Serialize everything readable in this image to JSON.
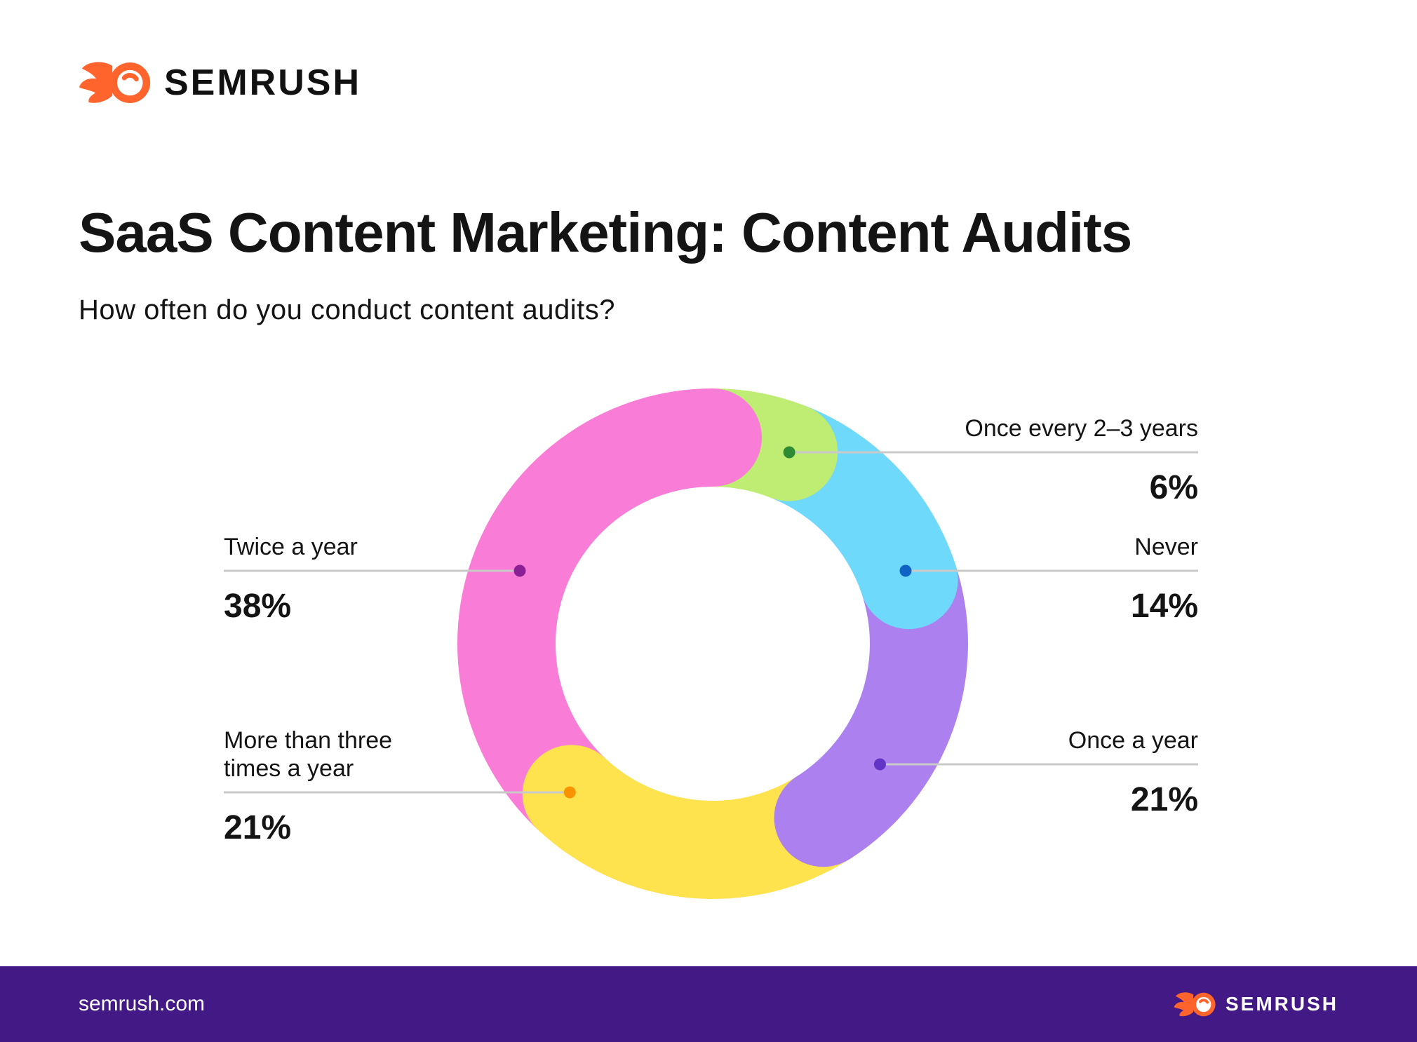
{
  "header": {
    "logo_text": "SEMRUSH",
    "title": "SaaS Content Marketing: Content Audits",
    "subtitle": "How often do you conduct content audits?"
  },
  "chart_data": {
    "type": "pie",
    "variant": "donut",
    "title": "How often do you conduct content audits?",
    "unit": "%",
    "start_angle_deg": 0,
    "direction": "clockwise",
    "segments": [
      {
        "label": "Once every 2–3 years",
        "value": 6,
        "display": "6%",
        "color": "#BFEC72",
        "dot_color": "#2E8B33"
      },
      {
        "label": "Never",
        "value": 14,
        "display": "14%",
        "color": "#6FD9FB",
        "dot_color": "#0E63C5"
      },
      {
        "label": "Once a year",
        "value": 21,
        "display": "21%",
        "color": "#AC80EF",
        "dot_color": "#6235C8"
      },
      {
        "label": "More than three times a year",
        "value": 21,
        "display": "21%",
        "color": "#FEE24E",
        "dot_color": "#F99400"
      },
      {
        "label": "Twice a year",
        "value": 38,
        "display": "38%",
        "color": "#F97CD6",
        "dot_color": "#8B1F94"
      }
    ]
  },
  "footer": {
    "url": "semrush.com",
    "logo_text": "SEMRUSH"
  },
  "colors": {
    "brand_orange": "#FF642D",
    "footer_bg": "#421985",
    "leader_line": "#C9C9C9",
    "text": "#141414",
    "background": "#FFFFFF"
  }
}
